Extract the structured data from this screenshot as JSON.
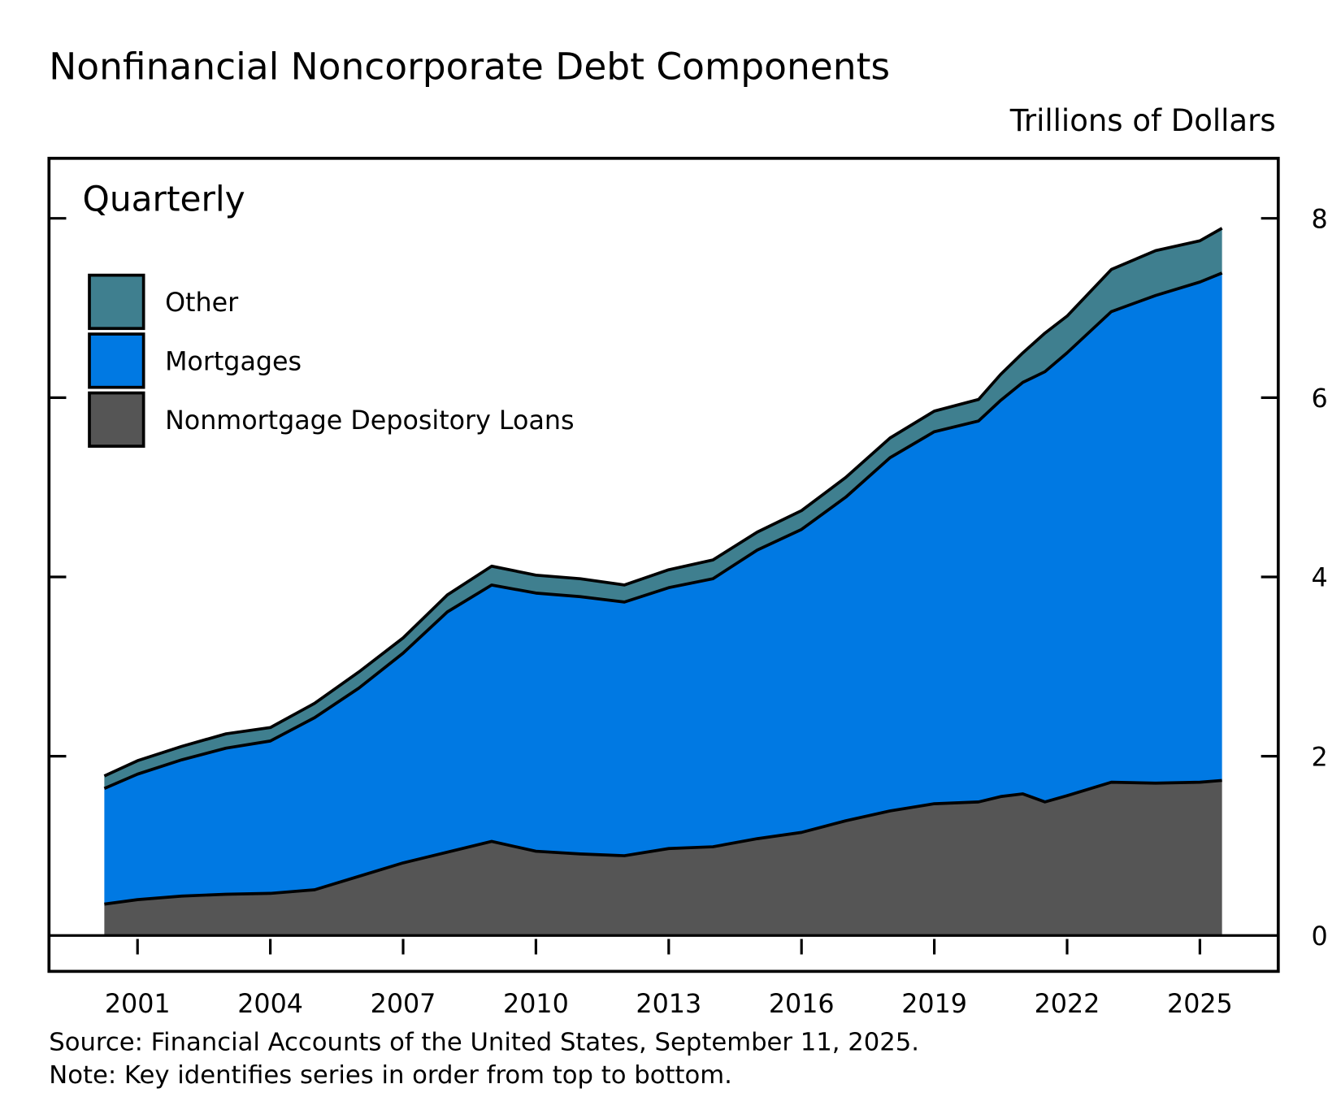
{
  "chart_data": {
    "type": "stacked-area",
    "title": "Nonfinancial Noncorporate Debt Components",
    "y_axis_label": "Trillions of Dollars",
    "frequency": "Quarterly",
    "source": "Source: Financial Accounts of the United States, September 11, 2025.",
    "note": "Note: Key identifies series in order from top to bottom.",
    "x": [
      2000.25,
      2001,
      2002,
      2003,
      2004,
      2005,
      2006,
      2007,
      2008,
      2009,
      2010,
      2011,
      2012,
      2013,
      2014,
      2015,
      2016,
      2017,
      2018,
      2019,
      2020,
      2020.5,
      2021,
      2021.5,
      2022,
      2023,
      2024,
      2025,
      2025.5
    ],
    "series": [
      {
        "name": "Nonmortgage Depository Loans",
        "color": "#555555",
        "values": [
          0.35,
          0.4,
          0.44,
          0.46,
          0.47,
          0.51,
          0.66,
          0.81,
          0.93,
          1.05,
          0.94,
          0.91,
          0.89,
          0.97,
          0.99,
          1.08,
          1.15,
          1.28,
          1.39,
          1.47,
          1.49,
          1.55,
          1.58,
          1.49,
          1.56,
          1.71,
          1.7,
          1.71,
          1.73
        ]
      },
      {
        "name": "Mortgages",
        "color": "#0079e3",
        "values": [
          1.29,
          1.4,
          1.52,
          1.63,
          1.7,
          1.92,
          2.1,
          2.34,
          2.68,
          2.86,
          2.88,
          2.87,
          2.83,
          2.91,
          2.99,
          3.22,
          3.38,
          3.61,
          3.94,
          4.15,
          4.25,
          4.42,
          4.59,
          4.8,
          4.94,
          5.25,
          5.44,
          5.58,
          5.66
        ]
      },
      {
        "name": "Other",
        "color": "#3f7f8f",
        "values": [
          0.14,
          0.15,
          0.15,
          0.16,
          0.15,
          0.16,
          0.18,
          0.17,
          0.19,
          0.21,
          0.2,
          0.2,
          0.19,
          0.2,
          0.21,
          0.2,
          0.21,
          0.22,
          0.22,
          0.23,
          0.24,
          0.29,
          0.33,
          0.43,
          0.41,
          0.47,
          0.5,
          0.46,
          0.5
        ]
      }
    ],
    "xlim": [
      1999,
      2026.77
    ],
    "xticks": [
      2001,
      2004,
      2007,
      2010,
      2013,
      2016,
      2019,
      2022,
      2025
    ],
    "ylim": [
      -0.4,
      8.67
    ],
    "yticks": [
      0,
      2,
      4,
      6,
      8
    ],
    "legend_position": "upper left"
  }
}
